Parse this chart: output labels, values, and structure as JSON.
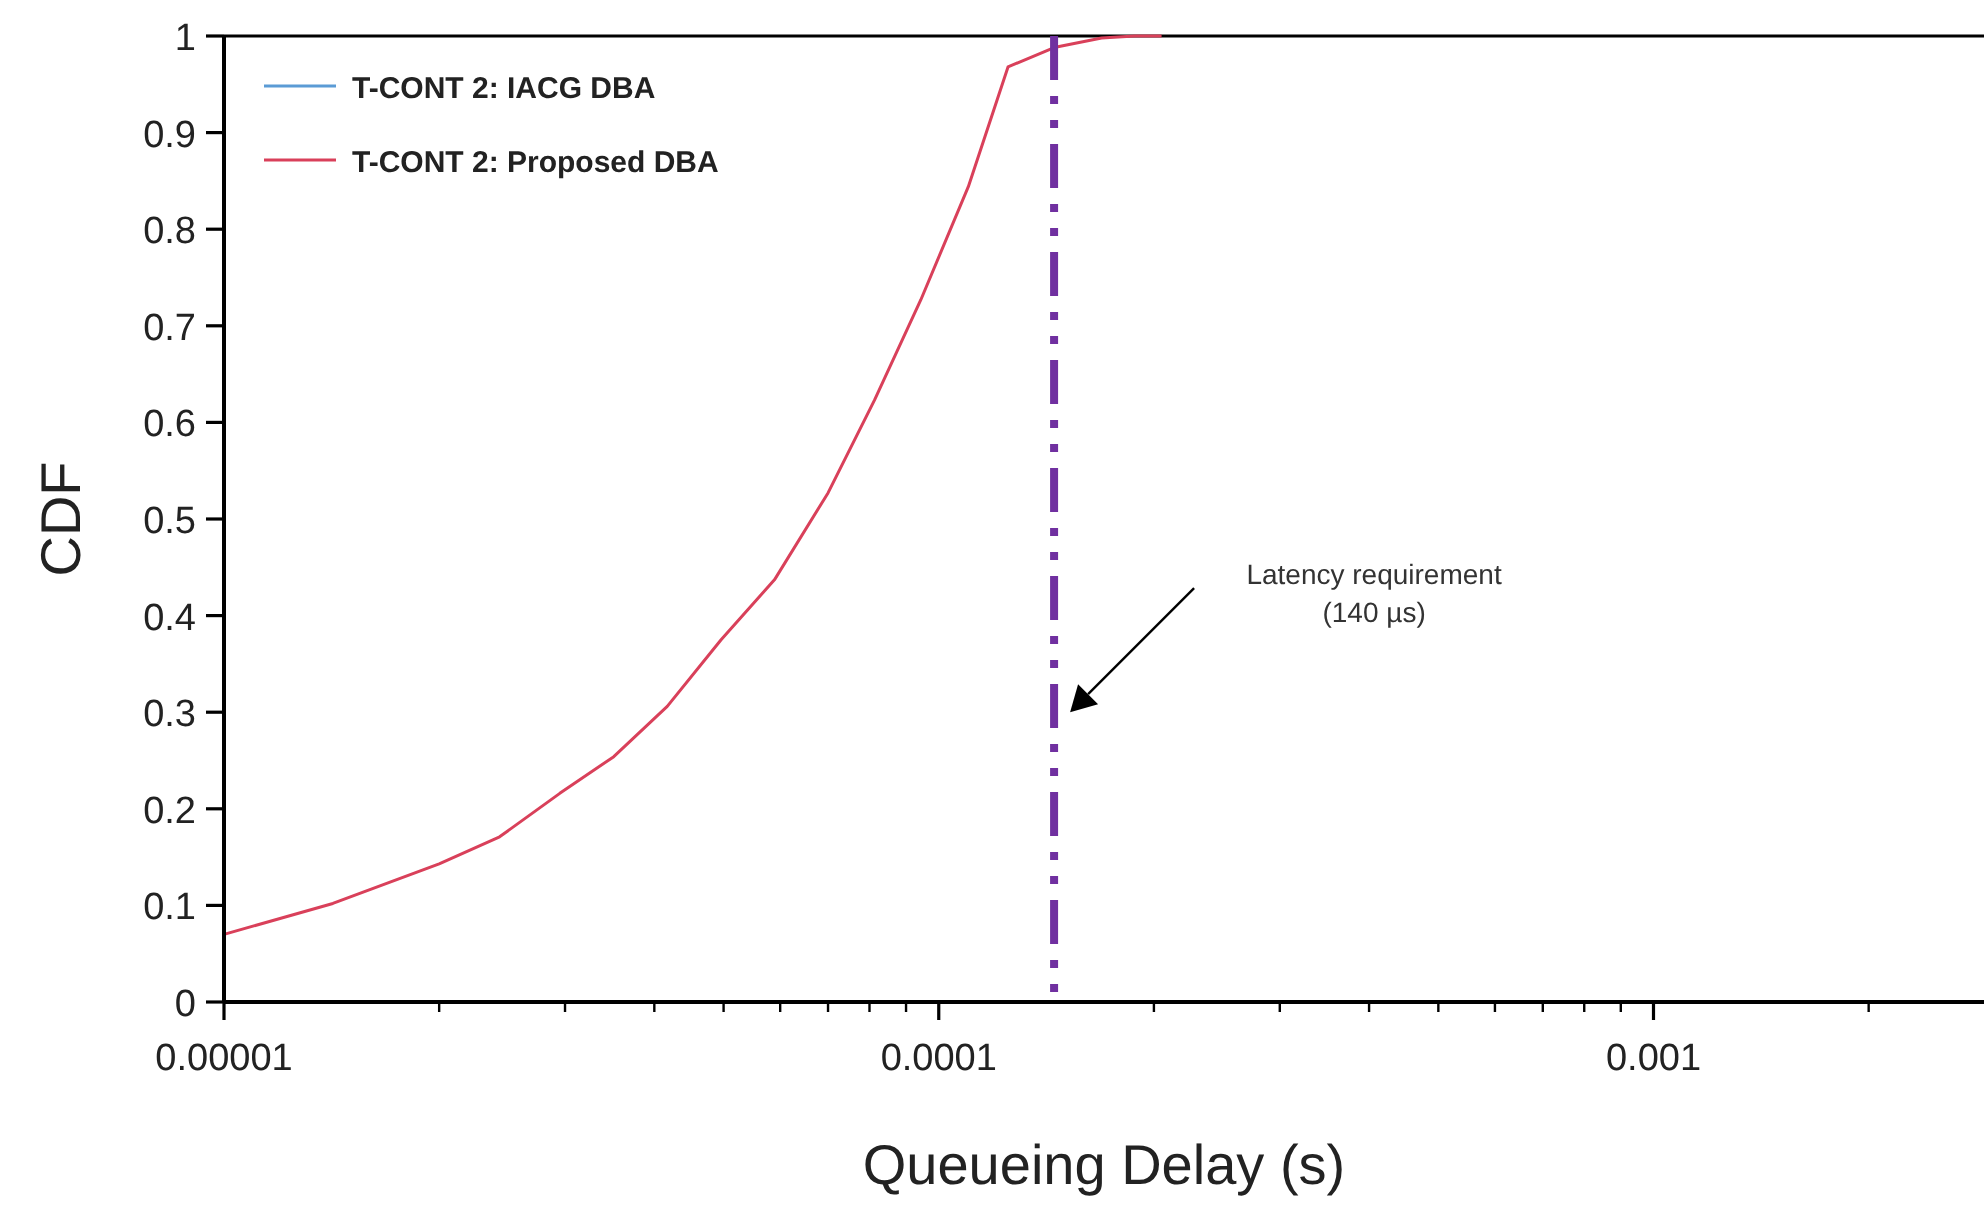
{
  "chart_data": {
    "type": "line",
    "xlabel": "Queueing Delay (s)",
    "ylabel": "CDF",
    "log": "x",
    "x": [
      1e-05,
      1.42e-05,
      2e-05,
      2.43e-05,
      2.95e-05,
      3.51e-05,
      4.17e-05,
      4.96e-05,
      5.89e-05,
      7e-05,
      8.13e-05,
      9.44e-05,
      0.00011,
      0.000125,
      0.000145,
      0.000169,
      0.000188,
      0.000205
    ],
    "series": [
      {
        "name": "T-CONT 2: IACG DBA",
        "color": "#5b9bd5",
        "values": [
          null,
          null,
          null,
          null,
          null,
          null,
          null,
          null,
          null,
          null,
          null,
          null,
          null,
          null,
          null,
          null,
          null,
          null
        ]
      },
      {
        "name": "T-CONT 2: Proposed DBA",
        "color": "#d9405a",
        "values": [
          0.07,
          0.102,
          0.143,
          0.171,
          0.216,
          0.254,
          0.306,
          0.375,
          0.437,
          0.527,
          0.623,
          0.727,
          0.844,
          0.968,
          0.988,
          0.998,
          1,
          1
        ]
      }
    ],
    "xlim": [
      1e-05,
      0.0029
    ],
    "ylim": [
      0,
      1
    ],
    "xticks": [
      {
        "value": 1e-05,
        "label": "0.00001"
      },
      {
        "value": 2e-05,
        "label": null
      },
      {
        "value": 3e-05,
        "label": null
      },
      {
        "value": 4e-05,
        "label": null
      },
      {
        "value": 5e-05,
        "label": null
      },
      {
        "value": 6e-05,
        "label": null
      },
      {
        "value": 7e-05,
        "label": null
      },
      {
        "value": 8e-05,
        "label": null
      },
      {
        "value": 9e-05,
        "label": null
      },
      {
        "value": 0.0001,
        "label": "0.0001"
      },
      {
        "value": 0.0002,
        "label": null
      },
      {
        "value": 0.0003,
        "label": null
      },
      {
        "value": 0.0004,
        "label": null
      },
      {
        "value": 0.0005,
        "label": null
      },
      {
        "value": 0.0006,
        "label": null
      },
      {
        "value": 0.0007,
        "label": null
      },
      {
        "value": 0.0008,
        "label": null
      },
      {
        "value": 0.0009,
        "label": null
      },
      {
        "value": 0.001,
        "label": "0.001"
      },
      {
        "value": 0.002,
        "label": null
      }
    ],
    "yticks": [
      0,
      0.1,
      0.2,
      0.3,
      0.4,
      0.5,
      0.6,
      0.7,
      0.8,
      0.9,
      1
    ],
    "ref_lines": [
      {
        "axis": "x",
        "value": 0.000145,
        "color": "#7030a0",
        "line_style": "dashdot"
      }
    ],
    "annotations": [
      "Latency requirement\n(140 µs)"
    ],
    "legend": "top left",
    "grid": false,
    "marker": "none",
    "line_style": "solid"
  }
}
